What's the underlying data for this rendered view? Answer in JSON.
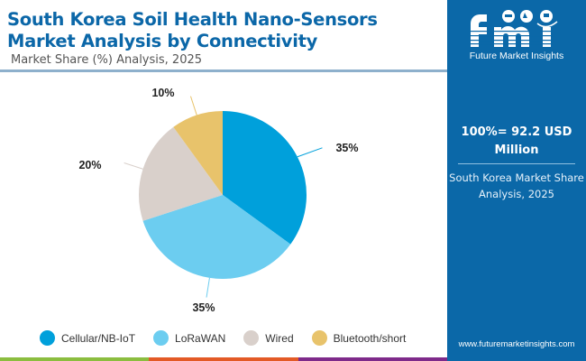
{
  "header": {
    "title": "South Korea Soil Health Nano-Sensors Market Analysis by Connectivity",
    "subtitle": "Market Share (%) Analysis, 2025"
  },
  "side_panel": {
    "logo_letters": "fmi",
    "logo_text": "Future Market Insights",
    "total": "100%= 92.2 USD Million",
    "caption": "South Korea Market Share Analysis, 2025",
    "website": "www.futuremarketinsights.com",
    "colors": {
      "background": "#0b68a8"
    }
  },
  "chart_data": {
    "type": "pie",
    "title": "South Korea Soil Health Nano-Sensors Market Analysis by Connectivity",
    "subtitle": "Market Share (%) Analysis, 2025",
    "categories": [
      "Cellular/NB-IoT",
      "LoRaWAN",
      "Wired",
      "Bluetooth/short"
    ],
    "values": [
      35,
      35,
      20,
      10
    ],
    "labels": [
      "35%",
      "35%",
      "20%",
      "10%"
    ],
    "colors": [
      "#00a0db",
      "#6ccdf0",
      "#d9d0cb",
      "#e8c36b"
    ],
    "start_angle": "12 o'clock",
    "direction": "clockwise",
    "legend_position": "bottom"
  },
  "bottom_stripe_colors": [
    "#8bbd3f",
    "#e35a26",
    "#7e2a8a"
  ]
}
